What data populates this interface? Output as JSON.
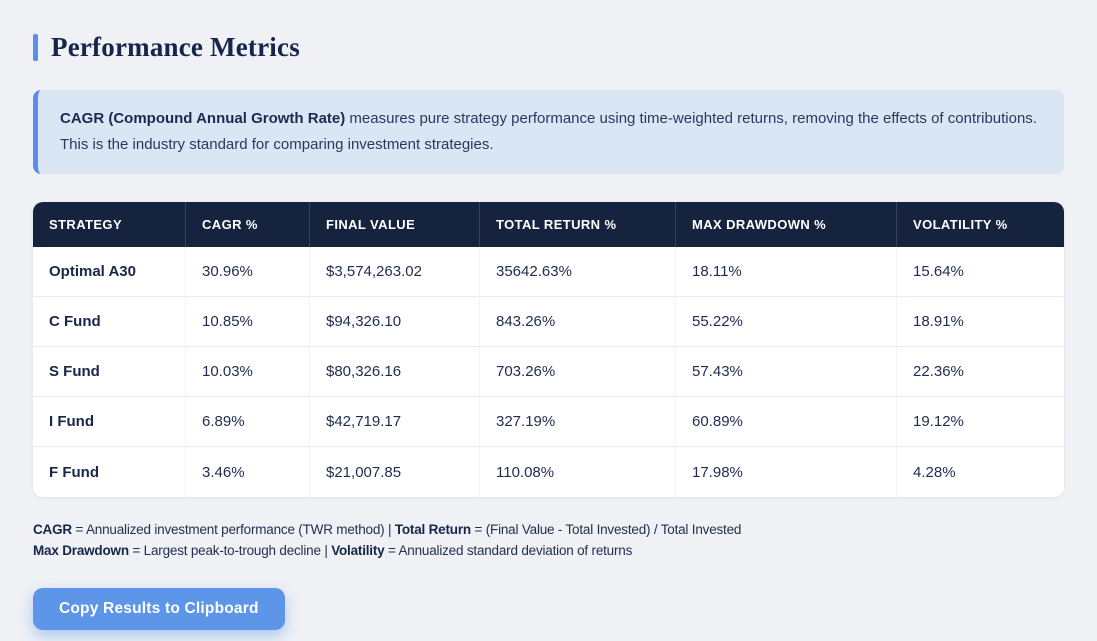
{
  "page": {
    "title": "Performance Metrics"
  },
  "info_box": {
    "bold_text": "CAGR (Compound Annual Growth Rate)",
    "text": " measures pure strategy performance using time-weighted returns, removing the effects of contributions. This is the industry standard for comparing investment strategies."
  },
  "table": {
    "columns": [
      "STRATEGY",
      "CAGR %",
      "FINAL VALUE",
      "TOTAL RETURN %",
      "MAX DRAWDOWN %",
      "VOLATILITY %"
    ],
    "rows": [
      {
        "strategy": "Optimal A30",
        "cagr": "30.96%",
        "final_value": "$3,574,263.02",
        "total_return": "35642.63%",
        "max_drawdown": "18.11%",
        "volatility": "15.64%"
      },
      {
        "strategy": "C Fund",
        "cagr": "10.85%",
        "final_value": "$94,326.10",
        "total_return": "843.26%",
        "max_drawdown": "55.22%",
        "volatility": "18.91%"
      },
      {
        "strategy": "S Fund",
        "cagr": "10.03%",
        "final_value": "$80,326.16",
        "total_return": "703.26%",
        "max_drawdown": "57.43%",
        "volatility": "22.36%"
      },
      {
        "strategy": "I Fund",
        "cagr": "6.89%",
        "final_value": "$42,719.17",
        "total_return": "327.19%",
        "max_drawdown": "60.89%",
        "volatility": "19.12%"
      },
      {
        "strategy": "F Fund",
        "cagr": "3.46%",
        "final_value": "$21,007.85",
        "total_return": "110.08%",
        "max_drawdown": "17.98%",
        "volatility": "4.28%"
      }
    ]
  },
  "footnotes": {
    "line1": {
      "b1": "CAGR",
      "t1": " = Annualized investment performance (TWR method) | ",
      "b2": "Total Return",
      "t2": " = (Final Value - Total Invested) / Total Invested"
    },
    "line2": {
      "b1": "Max Drawdown",
      "t1": " = Largest peak-to-trough decline | ",
      "b2": "Volatility",
      "t2": " = Annualized standard deviation of returns"
    }
  },
  "button": {
    "label": "Copy Results to Clipboard"
  },
  "colors": {
    "page_background": "#eff1f5",
    "accent_blue": "#5b8def",
    "info_box_background": "#dbe6f5",
    "table_header_background": "#16233f",
    "text_navy": "#1e2c50",
    "button_blue": "#5d95e8"
  }
}
